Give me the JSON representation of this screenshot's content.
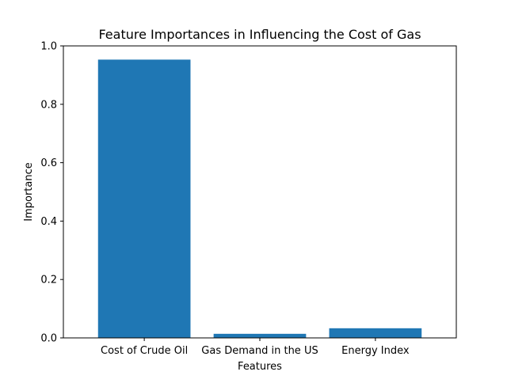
{
  "chart_data": {
    "type": "bar",
    "title": "Feature Importances in Influencing the Cost of Gas",
    "xlabel": "Features",
    "ylabel": "Importance",
    "categories": [
      "Cost of Crude Oil",
      "Gas Demand in the US",
      "Energy Index"
    ],
    "values": [
      0.953,
      0.014,
      0.033
    ],
    "ylim": [
      0,
      1.0
    ],
    "yticks": [
      0.0,
      0.2,
      0.4,
      0.6,
      0.8,
      1.0
    ],
    "ytick_labels": [
      "0.0",
      "0.2",
      "0.4",
      "0.6",
      "0.8",
      "1.0"
    ],
    "bar_color": "#1f77b4",
    "grid": false,
    "legend": false
  }
}
